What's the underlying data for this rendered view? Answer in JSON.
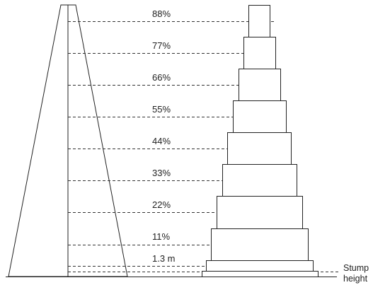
{
  "height_labels": [
    "88%",
    "77%",
    "66%",
    "55%",
    "44%",
    "33%",
    "22%",
    "11%",
    "1.3 m"
  ],
  "stump_label_line1": "Stump",
  "stump_label_line2": "height",
  "colors": {
    "stroke": "#222222",
    "dash": "#333333",
    "text": "#222222",
    "background": "#ffffff"
  }
}
